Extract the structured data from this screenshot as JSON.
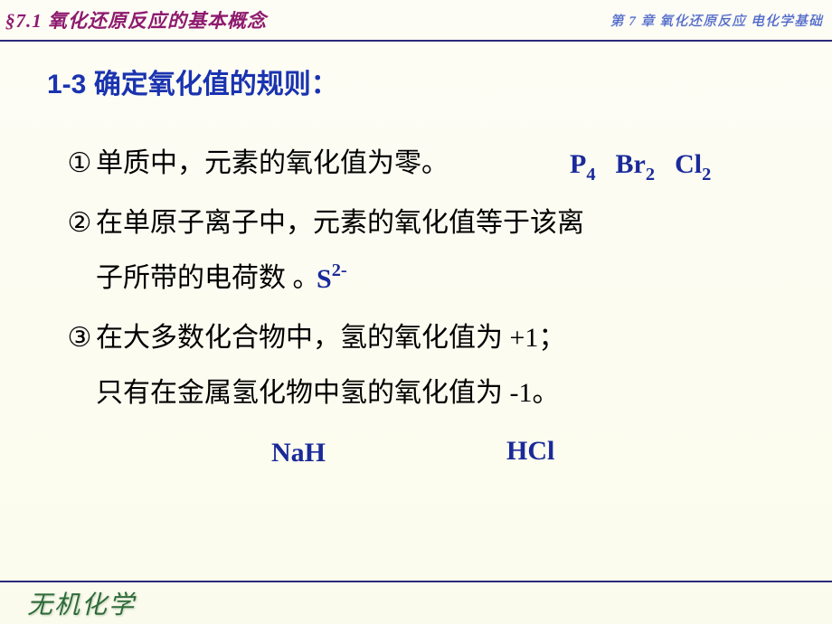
{
  "header": {
    "section": "§7.1  氧化还原反应的基本概念",
    "chapter": "第 7 章 氧化还原反应  电化学基础"
  },
  "heading": "1-3  确定氧化值的规则：",
  "rules": {
    "r1_num": "①",
    "r1_text": "单质中，元素的氧化值为零。",
    "r2_num": "②",
    "r2_line1": "在单原子离子中，元素的氧化值等于该离",
    "r2_line2": "子所带的电荷数 。",
    "r3_num": "③",
    "r3_line1": "在大多数化合物中，氢的氧化值为 +1；",
    "r3_line2": "只有在金属氢化物中氢的氧化值为 -1。"
  },
  "examples": {
    "p": "P",
    "p_sub": "4",
    "br": "Br",
    "br_sub": "2",
    "cl": "Cl",
    "cl_sub": "2",
    "s": "S",
    "s_sup": "2-",
    "nah": "NaH",
    "hcl": "HCl"
  },
  "footer": "无机化学"
}
